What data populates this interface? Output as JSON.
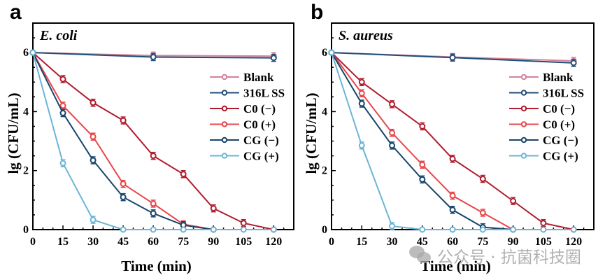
{
  "chart_data": [
    {
      "type": "line",
      "panel_letter": "a",
      "annotation": "E. coli",
      "xlabel": "Time (min)",
      "ylabel": "lg (CFU/mL)",
      "xlim": [
        0,
        130
      ],
      "ylim": [
        0,
        7
      ],
      "xticks": [
        0,
        15,
        30,
        45,
        60,
        75,
        90,
        105,
        120
      ],
      "yticks": [
        0,
        2,
        4,
        6
      ],
      "legend_position": "right",
      "series": [
        {
          "name": "Blank",
          "color": "#d4829a",
          "x": [
            0,
            60,
            120
          ],
          "y": [
            6.0,
            5.9,
            5.88
          ]
        },
        {
          "name": "316L SS",
          "color": "#1f4e79",
          "x": [
            0,
            60,
            120
          ],
          "y": [
            6.0,
            5.85,
            5.82
          ]
        },
        {
          "name": "C0 (−)",
          "color": "#b01c2e",
          "x": [
            0,
            15,
            30,
            45,
            60,
            75,
            90,
            105,
            120
          ],
          "y": [
            6.0,
            5.1,
            4.3,
            3.7,
            2.5,
            1.88,
            0.72,
            0.22,
            0
          ]
        },
        {
          "name": "C0 (+)",
          "color": "#e8464a",
          "x": [
            0,
            15,
            30,
            45,
            60,
            75,
            90
          ],
          "y": [
            6.0,
            4.2,
            3.15,
            1.55,
            0.88,
            0.18,
            0
          ]
        },
        {
          "name": "CG (−)",
          "color": "#17456b",
          "x": [
            0,
            15,
            30,
            45,
            60,
            75,
            90
          ],
          "y": [
            6.0,
            3.95,
            2.35,
            1.1,
            0.55,
            0.15,
            0
          ]
        },
        {
          "name": "CG (+)",
          "color": "#6bb5d6",
          "x": [
            0,
            15,
            30,
            45,
            60,
            75,
            90,
            105,
            120
          ],
          "y": [
            6.0,
            2.25,
            0.33,
            0,
            0,
            0,
            0,
            0,
            0
          ]
        }
      ]
    },
    {
      "type": "line",
      "panel_letter": "b",
      "annotation": "S. aureus",
      "xlabel": "Time (min)",
      "ylabel": "lg (CFU/mL)",
      "xlim": [
        0,
        130
      ],
      "ylim": [
        0,
        7
      ],
      "xticks": [
        0,
        15,
        30,
        45,
        60,
        75,
        90,
        105,
        120
      ],
      "yticks": [
        0,
        2,
        4,
        6
      ],
      "legend_position": "right",
      "series": [
        {
          "name": "Blank",
          "color": "#d4829a",
          "x": [
            0,
            60,
            120
          ],
          "y": [
            6.0,
            5.85,
            5.72
          ]
        },
        {
          "name": "316L SS",
          "color": "#1f4e79",
          "x": [
            0,
            60,
            120
          ],
          "y": [
            6.0,
            5.83,
            5.65
          ]
        },
        {
          "name": "C0 (−)",
          "color": "#b01c2e",
          "x": [
            0,
            15,
            30,
            45,
            60,
            75,
            90,
            105,
            120
          ],
          "y": [
            6.0,
            5.0,
            4.25,
            3.5,
            2.4,
            1.72,
            0.97,
            0.22,
            0
          ]
        },
        {
          "name": "C0 (+)",
          "color": "#e8464a",
          "x": [
            0,
            15,
            30,
            45,
            60,
            75,
            90
          ],
          "y": [
            6.0,
            4.62,
            3.28,
            2.2,
            1.15,
            0.57,
            0
          ]
        },
        {
          "name": "CG (−)",
          "color": "#17456b",
          "x": [
            0,
            15,
            30,
            45,
            60,
            75,
            90
          ],
          "y": [
            6.0,
            4.27,
            2.85,
            1.7,
            0.67,
            0.08,
            0
          ]
        },
        {
          "name": "CG (+)",
          "color": "#6bb5d6",
          "x": [
            0,
            15,
            30,
            45,
            60,
            75,
            90,
            105,
            120
          ],
          "y": [
            6.0,
            2.85,
            0.12,
            0,
            0,
            0,
            0,
            0,
            0
          ]
        }
      ]
    }
  ],
  "watermark": {
    "icon": "wechat-icon",
    "text": "公众号 · 抗菌科技圈"
  }
}
